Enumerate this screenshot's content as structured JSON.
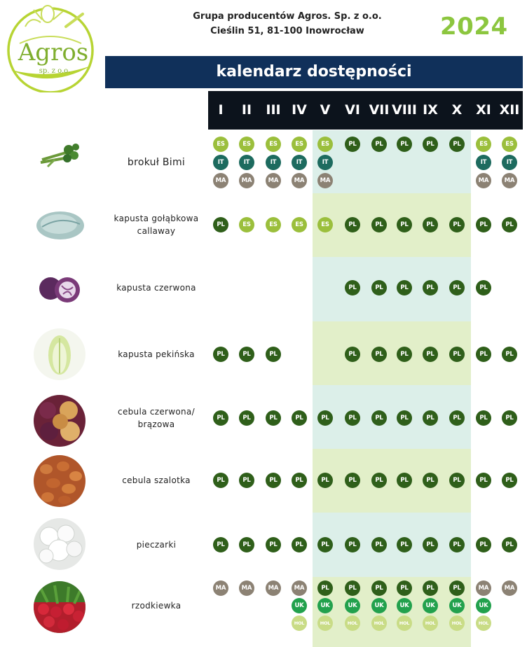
{
  "header": {
    "company_name": "Grupa producentów Agros. Sp. z o.o.",
    "company_address": "Cieślin 51, 81-100 Inowrocław",
    "year": "2024",
    "title": "kalendarz dostępności"
  },
  "logo": {
    "name": "Agros",
    "subtitle": "sp. z o.o."
  },
  "months": [
    "I",
    "II",
    "III",
    "IV",
    "V",
    "VI",
    "VII",
    "VIII",
    "IX",
    "X",
    "XI",
    "XII"
  ],
  "colors": {
    "navy": "#10305a",
    "black_bar": "#0c131c",
    "year_green": "#8cc63f",
    "band_light_blue": "#dcefe9",
    "band_light_green": "#e2efc9",
    "PL": "#2f5f1a",
    "ES": "#9bbf3c",
    "IT": "#1d6b5f",
    "MA": "#8c8274",
    "UK": "#22a14d",
    "HOL": "#c9dc86"
  },
  "products": [
    {
      "id": "brokul-bimi",
      "name_lines": [
        "brokuł Bimi"
      ],
      "image_icon": "broccoli-icon",
      "months": [
        [
          "ES",
          "IT",
          "MA"
        ],
        [
          "ES",
          "IT",
          "MA"
        ],
        [
          "ES",
          "IT",
          "MA"
        ],
        [
          "ES",
          "IT",
          "MA"
        ],
        [
          "ES",
          "IT",
          "MA"
        ],
        [
          "PL"
        ],
        [
          "PL"
        ],
        [
          "PL"
        ],
        [
          "PL"
        ],
        [
          "PL"
        ],
        [
          "ES",
          "IT",
          "MA"
        ],
        [
          "ES",
          "IT",
          "MA"
        ]
      ]
    },
    {
      "id": "kapusta-golabkowa",
      "name_lines": [
        "kapusta gołąbkowa",
        "callaway"
      ],
      "image_icon": "cabbage-icon",
      "months": [
        [
          "PL"
        ],
        [
          "ES"
        ],
        [
          "ES"
        ],
        [
          "ES"
        ],
        [
          "ES"
        ],
        [
          "PL"
        ],
        [
          "PL"
        ],
        [
          "PL"
        ],
        [
          "PL"
        ],
        [
          "PL"
        ],
        [
          "PL"
        ],
        [
          "PL"
        ]
      ]
    },
    {
      "id": "kapusta-czerwona",
      "name_lines": [
        "kapusta czerwona"
      ],
      "image_icon": "red-cabbage-icon",
      "months": [
        [],
        [],
        [],
        [],
        [],
        [
          "PL"
        ],
        [
          "PL"
        ],
        [
          "PL"
        ],
        [
          "PL"
        ],
        [
          "PL"
        ],
        [
          "PL"
        ],
        []
      ]
    },
    {
      "id": "kapusta-pekinska",
      "name_lines": [
        "kapusta pekińska"
      ],
      "image_icon": "chinese-cabbage-icon",
      "months": [
        [
          "PL"
        ],
        [
          "PL"
        ],
        [
          "PL"
        ],
        [],
        [],
        [
          "PL"
        ],
        [
          "PL"
        ],
        [
          "PL"
        ],
        [
          "PL"
        ],
        [
          "PL"
        ],
        [
          "PL"
        ],
        [
          "PL"
        ]
      ]
    },
    {
      "id": "cebula-czerwona-brazowa",
      "name_lines": [
        "cebula czerwona/",
        "brązowa"
      ],
      "image_icon": "onion-icon",
      "months": [
        [
          "PL"
        ],
        [
          "PL"
        ],
        [
          "PL"
        ],
        [
          "PL"
        ],
        [
          "PL"
        ],
        [
          "PL"
        ],
        [
          "PL"
        ],
        [
          "PL"
        ],
        [
          "PL"
        ],
        [
          "PL"
        ],
        [
          "PL"
        ],
        [
          "PL"
        ]
      ]
    },
    {
      "id": "cebula-szalotka",
      "name_lines": [
        "cebula szalotka"
      ],
      "image_icon": "shallot-icon",
      "months": [
        [
          "PL"
        ],
        [
          "PL"
        ],
        [
          "PL"
        ],
        [
          "PL"
        ],
        [
          "PL"
        ],
        [
          "PL"
        ],
        [
          "PL"
        ],
        [
          "PL"
        ],
        [
          "PL"
        ],
        [
          "PL"
        ],
        [
          "PL"
        ],
        [
          "PL"
        ]
      ]
    },
    {
      "id": "pieczarki",
      "name_lines": [
        "pieczarki"
      ],
      "image_icon": "mushroom-icon",
      "months": [
        [
          "PL"
        ],
        [
          "PL"
        ],
        [
          "PL"
        ],
        [
          "PL"
        ],
        [
          "PL"
        ],
        [
          "PL"
        ],
        [
          "PL"
        ],
        [
          "PL"
        ],
        [
          "PL"
        ],
        [
          "PL"
        ],
        [
          "PL"
        ],
        [
          "PL"
        ]
      ]
    },
    {
      "id": "rzodkiewka",
      "name_lines": [
        "rzodkiewka"
      ],
      "image_icon": "radish-icon",
      "months": [
        [
          "MA"
        ],
        [
          "MA"
        ],
        [
          "MA"
        ],
        [
          "MA",
          "UK",
          "HOL"
        ],
        [
          "PL",
          "UK",
          "HOL"
        ],
        [
          "PL",
          "UK",
          "HOL"
        ],
        [
          "PL",
          "UK",
          "HOL"
        ],
        [
          "PL",
          "UK",
          "HOL"
        ],
        [
          "PL",
          "UK",
          "HOL"
        ],
        [
          "PL",
          "UK",
          "HOL"
        ],
        [
          "MA",
          "UK",
          "HOL"
        ],
        [
          "MA"
        ]
      ]
    }
  ]
}
